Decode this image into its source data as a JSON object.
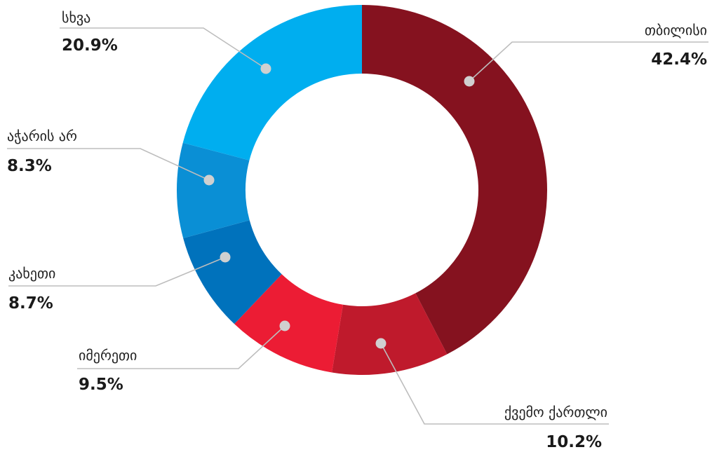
{
  "chart_data": {
    "type": "pie",
    "variant": "donut",
    "title": "",
    "start_angle_deg": 0,
    "direction": "clockwise",
    "slices": [
      {
        "label": "თბილისი",
        "value": 42.4,
        "display": "42.4%",
        "color": "#85121F"
      },
      {
        "label": "ქვემო ქართლი",
        "value": 10.2,
        "display": "10.2%",
        "color": "#BF1A2C"
      },
      {
        "label": "იმერეთი",
        "value": 9.5,
        "display": "9.5%",
        "color": "#EC1C34"
      },
      {
        "label": "კახეთი",
        "value": 8.7,
        "display": "8.7%",
        "color": "#0072BC"
      },
      {
        "label": "აჭარის არ",
        "value": 8.3,
        "display": "8.3%",
        "color": "#0A8FD5"
      },
      {
        "label": "სხვა",
        "value": 20.9,
        "display": "20.9%",
        "color": "#00AEEF"
      }
    ],
    "leader_style": {
      "line_color": "#BDBDBD",
      "dot_color": "#D0D0D0"
    }
  }
}
